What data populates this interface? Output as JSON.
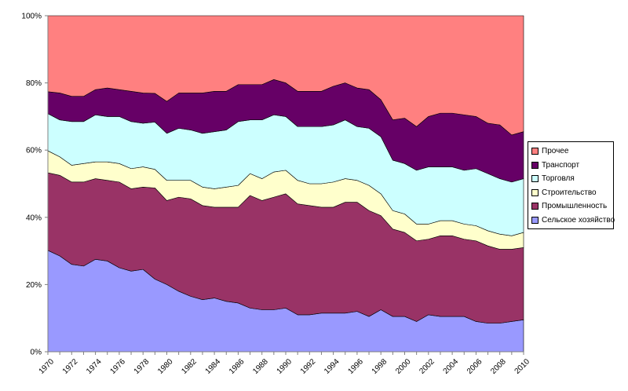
{
  "chart_data": {
    "type": "area",
    "stacked": true,
    "percent": true,
    "x": [
      1970,
      1971,
      1972,
      1973,
      1974,
      1975,
      1976,
      1977,
      1978,
      1979,
      1980,
      1981,
      1982,
      1983,
      1984,
      1985,
      1986,
      1987,
      1988,
      1989,
      1990,
      1991,
      1992,
      1993,
      1994,
      1995,
      1996,
      1997,
      1998,
      1999,
      2000,
      2001,
      2002,
      2003,
      2004,
      2005,
      2006,
      2007,
      2008,
      2009,
      2010
    ],
    "xticks": [
      "1970",
      "1972",
      "1974",
      "1976",
      "1978",
      "1980",
      "1982",
      "1984",
      "1986",
      "1988",
      "1990",
      "1992",
      "1994",
      "1996",
      "1998",
      "2000",
      "2002",
      "2004",
      "2006",
      "2008",
      "2010"
    ],
    "ylim": [
      0,
      100
    ],
    "yticks": [
      "0%",
      "20%",
      "40%",
      "60%",
      "80%",
      "100%"
    ],
    "grid": false,
    "legend_position": "right",
    "series": [
      {
        "name": "Сельское хозяйство",
        "color": "#9999ff",
        "values": [
          30,
          28.5,
          26,
          25.5,
          27.5,
          27,
          25,
          24,
          24.5,
          21.5,
          20,
          18,
          16.5,
          15.5,
          16,
          15,
          14.5,
          13,
          12.5,
          12.5,
          13,
          11,
          11,
          11.5,
          11.5,
          11.5,
          12,
          10.5,
          12.5,
          10.5,
          10.5,
          9,
          11,
          10.5,
          10.5,
          10.5,
          9,
          8.5,
          8.5,
          9,
          9.5
        ]
      },
      {
        "name": "Промышленность",
        "color": "#993366",
        "values": [
          23,
          24,
          24.5,
          25,
          24,
          24,
          25.5,
          24.5,
          24.5,
          27,
          25,
          28,
          29,
          28,
          27,
          28,
          28.5,
          33.5,
          32.5,
          33.5,
          34,
          33,
          32.5,
          31.5,
          31.5,
          33,
          32.5,
          31.5,
          28,
          26,
          25,
          24,
          22.5,
          24,
          24,
          23,
          24,
          23,
          22,
          21.5,
          21.5
        ]
      },
      {
        "name": "Строительство",
        "color": "#ffffcc",
        "values": [
          6.5,
          5.5,
          5,
          5.5,
          5,
          5.5,
          5.5,
          6,
          6,
          5.5,
          6,
          5,
          5.5,
          5.5,
          5.5,
          6,
          6.5,
          6.5,
          6.5,
          7.5,
          7,
          7,
          6.5,
          7,
          7.5,
          7,
          6.5,
          7.5,
          6.5,
          5.5,
          5.5,
          5,
          4.5,
          4.5,
          4.5,
          4.5,
          4.5,
          4.5,
          4.5,
          4,
          4.5
        ]
      },
      {
        "name": "Торговля",
        "color": "#ccffff",
        "values": [
          11,
          11,
          13,
          12.5,
          14,
          13.5,
          14,
          14,
          13,
          14,
          14,
          15.5,
          15,
          16,
          17,
          17,
          19,
          16,
          17.5,
          17,
          16,
          16,
          17,
          17,
          17,
          17.5,
          16,
          17,
          17,
          15,
          15,
          16,
          17,
          16,
          16,
          16,
          17,
          17,
          16.5,
          16,
          16
        ]
      },
      {
        "name": "Транспорт",
        "color": "#660066",
        "values": [
          6.5,
          8,
          7.5,
          7.5,
          7.5,
          8.5,
          8,
          9,
          9,
          8.5,
          9.5,
          10.5,
          11,
          12,
          12,
          11.5,
          11,
          10.5,
          10.5,
          10.5,
          10,
          10.5,
          10.5,
          10.5,
          11.5,
          11,
          11.5,
          11.5,
          11,
          12,
          13.5,
          13,
          15,
          16,
          16,
          16.5,
          15.5,
          15,
          16,
          14,
          14
        ]
      },
      {
        "name": "Прочее",
        "color": "#ff8080",
        "values": [
          22.5,
          23,
          24,
          24,
          22,
          21.5,
          22,
          22.5,
          23,
          23,
          25.5,
          23,
          23,
          23,
          22.5,
          22.5,
          20.5,
          20.5,
          20.5,
          19,
          20,
          22.5,
          22.5,
          22.5,
          21,
          20,
          21.5,
          22,
          25,
          31,
          30.5,
          33,
          30,
          29,
          29,
          29.5,
          30,
          32,
          32.5,
          35.5,
          34.5
        ]
      }
    ]
  }
}
